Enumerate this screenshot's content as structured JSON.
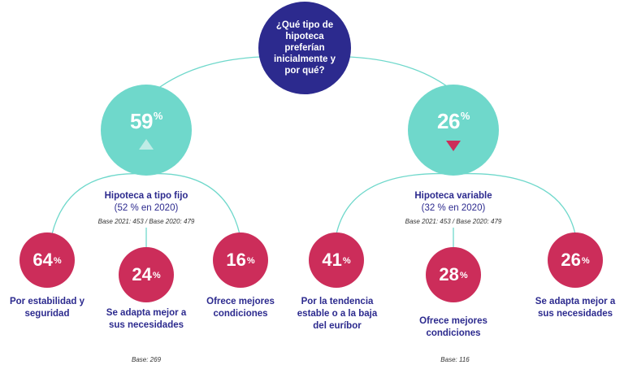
{
  "question": "¿Qué tipo de hipoteca preferían inicialmente y por qué?",
  "colors": {
    "navy": "#2c2a8e",
    "teal": "#6fd8cb",
    "crimson": "#cc2d5a",
    "text": "#2c2a8e"
  },
  "branches": {
    "fixed": {
      "value": "59",
      "title": "Hipoteca a tipo fijo",
      "previous": "(52 % en 2020)",
      "base": "Base 2021: 453 / Base 2020: 479",
      "trend": "up-arrow",
      "footer_base": "Base: 269",
      "reasons": [
        {
          "value": "64",
          "label": "Por estabilidad y seguridad"
        },
        {
          "value": "24",
          "label": "Se adapta mejor a sus necesidades"
        },
        {
          "value": "16",
          "label": "Ofrece mejores condiciones"
        }
      ]
    },
    "variable": {
      "value": "26",
      "title": "Hipoteca variable",
      "previous": "(32 % en 2020)",
      "base": "Base 2021: 453 / Base 2020: 479",
      "trend": "down-arrow",
      "footer_base": "Base: 116",
      "reasons": [
        {
          "value": "41",
          "label": "Por la tendencia estable o a la baja del euríbor"
        },
        {
          "value": "28",
          "label": "Ofrece mejores condiciones"
        },
        {
          "value": "26",
          "label": "Se adapta mejor a sus necesidades"
        }
      ]
    }
  },
  "percent_symbol": "%"
}
